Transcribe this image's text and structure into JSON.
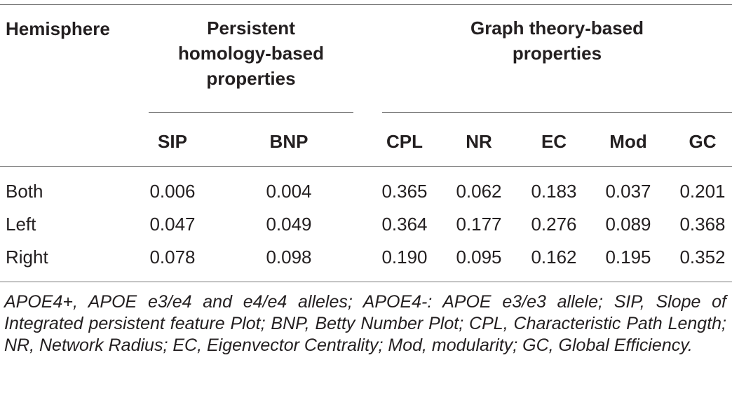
{
  "table": {
    "header": {
      "hemisphere": "Hemisphere",
      "group1": [
        "Persistent",
        "homology-based",
        "properties"
      ],
      "group2": [
        "Graph theory-based",
        "properties"
      ],
      "columns": [
        "SIP",
        "BNP",
        "CPL",
        "NR",
        "EC",
        "Mod",
        "GC"
      ]
    },
    "rows": [
      {
        "label": "Both",
        "values": [
          "0.006",
          "0.004",
          "0.365",
          "0.062",
          "0.183",
          "0.037",
          "0.201"
        ]
      },
      {
        "label": "Left",
        "values": [
          "0.047",
          "0.049",
          "0.364",
          "0.177",
          "0.276",
          "0.089",
          "0.368"
        ]
      },
      {
        "label": "Right",
        "values": [
          "0.078",
          "0.098",
          "0.190",
          "0.095",
          "0.162",
          "0.195",
          "0.352"
        ]
      }
    ]
  },
  "footnote": "APOE4+, APOE e3/e4 and e4/e4 alleles; APOE4-: APOE e3/e3 allele; SIP, Slope of Integrated persistent feature Plot; BNP, Betty Number Plot; CPL, Characteristic Path Length; NR, Network Radius; EC, Eigenvector Centrality; Mod, modularity; GC, Global Efficiency."
}
